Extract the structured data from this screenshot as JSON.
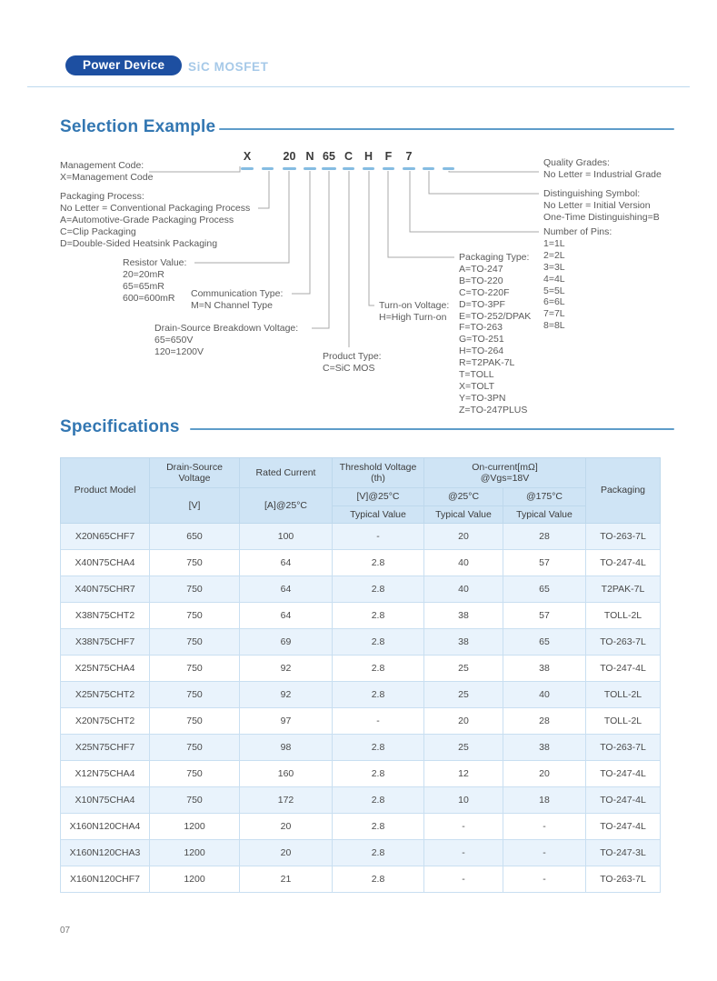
{
  "colors": {
    "brand_blue": "#1d4fa1",
    "light_blue": "#a6c9e8",
    "heading_blue": "#3377b2",
    "table_header_bg": "#cfe4f5",
    "table_alt_row_bg": "#e9f3fc",
    "underline_tick": "#85bce2"
  },
  "header": {
    "badge": "Power Device",
    "subtitle": "SiC MOSFET"
  },
  "sections": {
    "selection": "Selection Example",
    "specifications": "Specifications"
  },
  "diagram": {
    "code": [
      "X",
      "20",
      "N",
      "65",
      "C",
      "H",
      "F",
      "7"
    ],
    "labels": {
      "management": {
        "lines": [
          "Management Code:",
          "X=Management Code"
        ]
      },
      "packaging_process": {
        "lines": [
          "Packaging Process:",
          "No Letter = Conventional Packaging Process",
          "A=Automotive-Grade Packaging Process",
          "C=Clip Packaging",
          "D=Double-Sided Heatsink Packaging"
        ]
      },
      "resistor_value": {
        "lines": [
          "Resistor Value:",
          "20=20mR",
          "65=65mR",
          "600=600mR"
        ]
      },
      "communication_type": {
        "lines": [
          "Communication Type:",
          "M=N Channel Type"
        ]
      },
      "breakdown_voltage": {
        "lines": [
          "Drain-Source Breakdown Voltage:",
          "65=650V",
          "120=1200V"
        ]
      },
      "product_type": {
        "lines": [
          "Product Type:",
          "C=SiC MOS"
        ]
      },
      "turn_on_voltage": {
        "lines": [
          "Turn-on Voltage:",
          "H=High Turn-on"
        ]
      },
      "packaging_type": {
        "lines": [
          "Packaging Type:",
          "A=TO-247",
          "B=TO-220",
          "C=TO-220F",
          "D=TO-3PF",
          "E=TO-252/DPAK",
          "F=TO-263",
          "G=TO-251",
          "H=TO-264",
          "R=T2PAK-7L",
          "T=TOLL",
          "X=TOLT",
          "Y=TO-3PN",
          "Z=TO-247PLUS"
        ]
      },
      "quality_grades": {
        "lines": [
          "Quality Grades:",
          "No Letter = Industrial Grade"
        ]
      },
      "distinguishing_symbol": {
        "lines": [
          "Distinguishing Symbol:",
          "No Letter = Initial Version",
          "One-Time Distinguishing=B"
        ]
      },
      "number_of_pins": {
        "lines": [
          "Number of Pins:",
          "1=1L",
          "2=2L",
          "3=3L",
          "4=4L",
          "5=5L",
          "6=6L",
          "7=7L",
          "8=8L"
        ]
      }
    }
  },
  "table": {
    "header": {
      "product_model": "Product Model",
      "dsv_title": "Drain-Source Voltage",
      "dsv_unit": "[V]",
      "rated_title": "Rated Current",
      "rated_unit": "[A]@25°C",
      "vth_title": "Threshold Voltage (th)",
      "vth_cond": "[V]@25°C",
      "oncur_line1": "On-current[mΩ]",
      "oncur_line2": "@Vgs=18V",
      "at25": "@25°C",
      "at175": "@175°C",
      "typical": "Typical Value",
      "packaging": "Packaging"
    },
    "rows": [
      [
        "X20N65CHF7",
        "650",
        "100",
        "-",
        "20",
        "28",
        "TO-263-7L"
      ],
      [
        "X40N75CHA4",
        "750",
        "64",
        "2.8",
        "40",
        "57",
        "TO-247-4L"
      ],
      [
        "X40N75CHR7",
        "750",
        "64",
        "2.8",
        "40",
        "65",
        "T2PAK-7L"
      ],
      [
        "X38N75CHT2",
        "750",
        "64",
        "2.8",
        "38",
        "57",
        "TOLL-2L"
      ],
      [
        "X38N75CHF7",
        "750",
        "69",
        "2.8",
        "38",
        "65",
        "TO-263-7L"
      ],
      [
        "X25N75CHA4",
        "750",
        "92",
        "2.8",
        "25",
        "38",
        "TO-247-4L"
      ],
      [
        "X25N75CHT2",
        "750",
        "92",
        "2.8",
        "25",
        "40",
        "TOLL-2L"
      ],
      [
        "X20N75CHT2",
        "750",
        "97",
        "-",
        "20",
        "28",
        "TOLL-2L"
      ],
      [
        "X25N75CHF7",
        "750",
        "98",
        "2.8",
        "25",
        "38",
        "TO-263-7L"
      ],
      [
        "X12N75CHA4",
        "750",
        "160",
        "2.8",
        "12",
        "20",
        "TO-247-4L"
      ],
      [
        "X10N75CHA4",
        "750",
        "172",
        "2.8",
        "10",
        "18",
        "TO-247-4L"
      ],
      [
        "X160N120CHA4",
        "1200",
        "20",
        "2.8",
        "-",
        "-",
        "TO-247-4L"
      ],
      [
        "X160N120CHA3",
        "1200",
        "20",
        "2.8",
        "-",
        "-",
        "TO-247-3L"
      ],
      [
        "X160N120CHF7",
        "1200",
        "21",
        "2.8",
        "-",
        "-",
        "TO-263-7L"
      ]
    ]
  },
  "page": {
    "number": "07"
  }
}
